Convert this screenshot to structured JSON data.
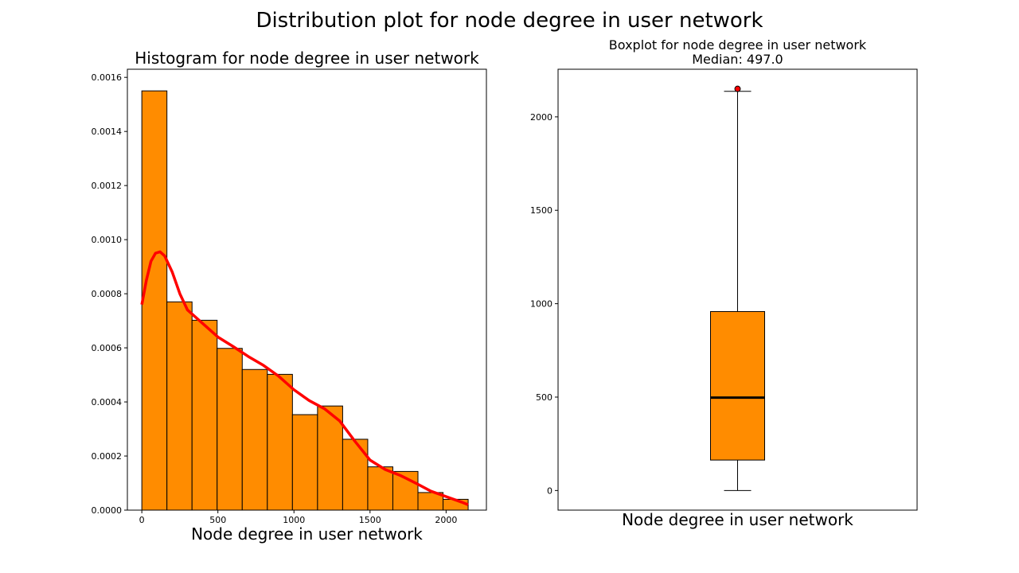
{
  "figure": {
    "suptitle": "Distribution plot for node degree in user network"
  },
  "chart_data": [
    {
      "type": "bar",
      "subtype": "histogram",
      "title": "Histogram for node degree in user network",
      "xlabel": "Node degree in user network",
      "ylabel": "",
      "xlim": [
        -95,
        2265
      ],
      "ylim": [
        0,
        0.00163
      ],
      "xticks": [
        0,
        500,
        1000,
        1500,
        2000
      ],
      "yticks": [
        0.0,
        0.0002,
        0.0004,
        0.0006,
        0.0008,
        0.001,
        0.0012,
        0.0014,
        0.0016
      ],
      "ytick_labels": [
        "0.0000",
        "0.0002",
        "0.0004",
        "0.0006",
        "0.0008",
        "0.0010",
        "0.0012",
        "0.0014",
        "0.0016"
      ],
      "bins": [
        {
          "x0": 0,
          "x1": 165,
          "value": 0.00155
        },
        {
          "x0": 165,
          "x1": 330,
          "value": 0.00077
        },
        {
          "x0": 330,
          "x1": 495,
          "value": 0.000702
        },
        {
          "x0": 495,
          "x1": 660,
          "value": 0.000598
        },
        {
          "x0": 660,
          "x1": 825,
          "value": 0.00052
        },
        {
          "x0": 825,
          "x1": 990,
          "value": 0.000502
        },
        {
          "x0": 990,
          "x1": 1155,
          "value": 0.000353
        },
        {
          "x0": 1155,
          "x1": 1320,
          "value": 0.000385
        },
        {
          "x0": 1320,
          "x1": 1485,
          "value": 0.000262
        },
        {
          "x0": 1485,
          "x1": 1650,
          "value": 0.00016
        },
        {
          "x0": 1650,
          "x1": 1815,
          "value": 0.000143
        },
        {
          "x0": 1815,
          "x1": 1980,
          "value": 6.5e-05
        },
        {
          "x0": 1980,
          "x1": 2145,
          "value": 4e-05
        }
      ],
      "kde": {
        "x": [
          0,
          30,
          60,
          90,
          120,
          150,
          200,
          250,
          300,
          400,
          500,
          600,
          700,
          800,
          900,
          1000,
          1100,
          1200,
          1300,
          1400,
          1500,
          1600,
          1700,
          1800,
          1900,
          2000,
          2100,
          2145
        ],
        "y": [
          0.00076,
          0.00085,
          0.00092,
          0.00095,
          0.000955,
          0.00094,
          0.00088,
          0.0008,
          0.00074,
          0.00069,
          0.00064,
          0.000605,
          0.000568,
          0.000535,
          0.000495,
          0.000445,
          0.000405,
          0.000375,
          0.00033,
          0.000255,
          0.000185,
          0.00015,
          0.000128,
          0.0001,
          7e-05,
          5e-05,
          3e-05,
          2e-05
        ]
      },
      "colors": {
        "bar": "#ff8c00",
        "edge": "#000000",
        "kde": "#ff0000"
      },
      "grid": false
    },
    {
      "type": "box",
      "title": "Boxplot for node degree in user network",
      "subtitle": "Median: 497.0",
      "xlabel": "Node degree in user network",
      "ylabel": "",
      "ylim": [
        -105,
        2255
      ],
      "yticks": [
        0,
        500,
        1000,
        1500,
        2000
      ],
      "ytick_labels": [
        "0",
        "500",
        "1000",
        "1500",
        "2000"
      ],
      "stats": {
        "whisker_low": 0,
        "q1": 163,
        "median": 497.0,
        "q3": 958,
        "whisker_high": 2137,
        "outliers": [
          2150
        ]
      },
      "colors": {
        "box": "#ff8c00",
        "edge": "#000000",
        "median": "#000000",
        "outlier": "#ff0000"
      },
      "grid": false
    }
  ]
}
